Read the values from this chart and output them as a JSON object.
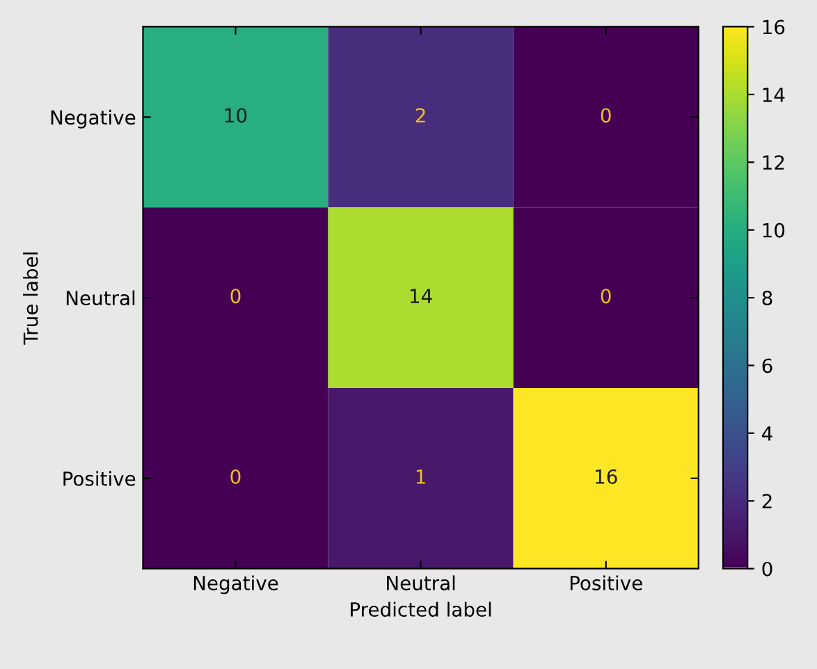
{
  "chart_data": {
    "type": "heatmap",
    "xlabel": "Predicted label",
    "ylabel": "True label",
    "categories": [
      "Negative",
      "Neutral",
      "Positive"
    ],
    "y_categories": [
      "Negative",
      "Neutral",
      "Positive"
    ],
    "cells": [
      [
        10,
        2,
        0
      ],
      [
        0,
        14,
        0
      ],
      [
        0,
        1,
        16
      ]
    ],
    "clim": [
      0,
      16
    ],
    "cticks": [
      0,
      2,
      4,
      6,
      8,
      10,
      12,
      14,
      16
    ],
    "data_labels": true,
    "grid": false
  }
}
